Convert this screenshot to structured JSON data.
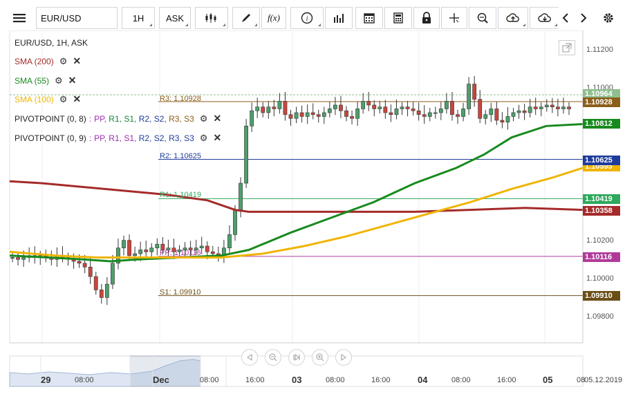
{
  "toolbar": {
    "symbol": "EUR/USD",
    "timeframe": "1H",
    "price_type": "ASK",
    "fx_label": "f(x)"
  },
  "chart_title": "EUR/USD, 1H, ASK",
  "indicators": {
    "sma200": "SMA (200)",
    "sma55": "SMA (55)",
    "sma100": "SMA (100)",
    "pivot1_name": "PIVOTPOINT (0, 8)",
    "pivot2_name": "PIVOTPOINT (0, 9)",
    "pivot_sep": ":",
    "pp": "PP,",
    "r1": "R1,",
    "s1": "S1,",
    "r2": "R2,",
    "s2": "S2,",
    "r3": "R3,",
    "s3": "S3"
  },
  "levels": {
    "r3": "R3: 1.10928",
    "r2": "R2: 1.10625",
    "r1": "R1: 1.10419",
    "pp": "PP: 1.10116",
    "s1": "S1: 1.09910"
  },
  "y_axis": [
    "1.11200",
    "1.11000",
    "1.10200",
    "1.10000",
    "1.09800"
  ],
  "price_tags": {
    "current": "1.10964",
    "r3": "1.10928",
    "sma55": "1.10812",
    "r2": "1.10625",
    "sma100": "1.10595",
    "r1": "1.10419",
    "sma200": "1.10358",
    "pp": "1.10116",
    "s1": "1.09910"
  },
  "x_axis": {
    "d29": "29",
    "t1": "08:00",
    "dec": "Dec",
    "t2": "08:00",
    "t3": "16:00",
    "d03": "03",
    "t4": "08:00",
    "t5": "16:00",
    "d04": "04",
    "t6": "08:00",
    "t7": "16:00",
    "d05": "05",
    "t8": "08",
    "date": "05.12.2019"
  },
  "colors": {
    "sma200": "#a52a2a",
    "sma55": "#178a1e",
    "sma100": "#f0b400",
    "bull": "#4f9e6b",
    "bear": "#c9463d",
    "pp": "#b03a9a",
    "r1": "#2ea85c",
    "r2": "#1f3c9b",
    "r3": "#8b5e1a",
    "s1": "#6b4e16",
    "current": "#8fbf8f"
  }
}
